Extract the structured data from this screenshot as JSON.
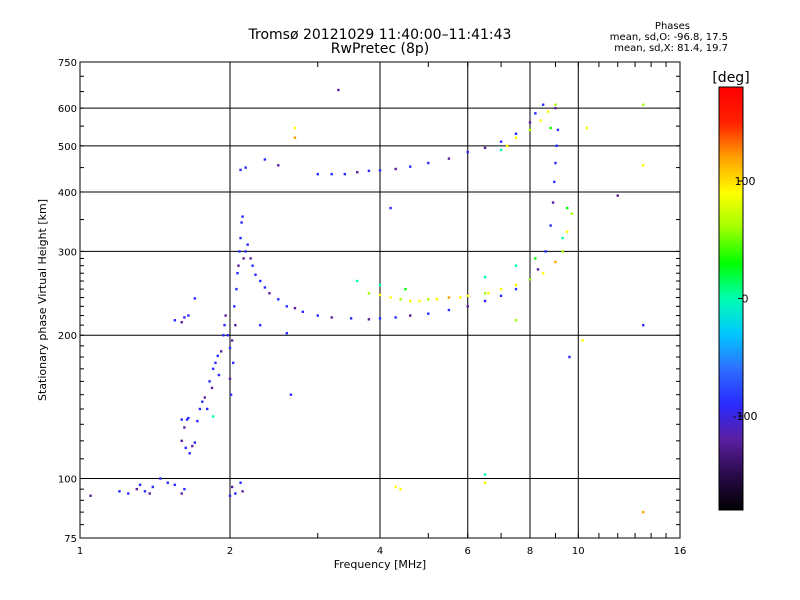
{
  "header": {
    "title_line1": "Tromsø 20121029 11:40:00–11:41:43",
    "title_line2": "RwPretec (8p)",
    "phase_title": "Phases",
    "phase_stats_o": "mean, sd,O: -96.8, 17.5",
    "phase_stats_x": "mean, sd,X: 81.4, 19.7"
  },
  "chart_data": {
    "type": "scatter",
    "title": "Tromsø 20121029 11:40:00–11:41:43",
    "subtitle": "RwPretec (8p)",
    "xlabel": "Frequency [MHz]",
    "ylabel": "Stationary phase Virtual Height [km]",
    "x_scale": "log",
    "y_scale": "log",
    "xlim": [
      1,
      16
    ],
    "ylim": [
      75,
      750
    ],
    "x_ticks": [
      1,
      2,
      4,
      6,
      8,
      10,
      16
    ],
    "x_tick_labels": [
      "1",
      "2",
      "4",
      "6",
      "8",
      "10",
      "16"
    ],
    "x_gridlines": [
      2,
      4,
      6,
      8,
      10
    ],
    "y_ticks": [
      75,
      100,
      200,
      300,
      400,
      500,
      600,
      750
    ],
    "y_tick_labels": [
      "75",
      "100",
      "200",
      "300",
      "400",
      "500",
      "600",
      "750"
    ],
    "y_gridlines": [
      100,
      200,
      300,
      400,
      500,
      600
    ],
    "grid": true,
    "colorbar": {
      "label": "[deg]",
      "range": [
        -180,
        180
      ],
      "ticks": [
        100,
        0,
        -100
      ],
      "tick_labels": [
        "100",
        "0",
        "-100"
      ],
      "colormap": [
        "#000000",
        "#2a0a4a",
        "#5a1fa0",
        "#2a2aff",
        "#2e6fff",
        "#00c8ff",
        "#00ffb0",
        "#00ff00",
        "#a0ff00",
        "#ffff00",
        "#ffa000",
        "#ff2000",
        "#ff0000"
      ]
    },
    "series": [
      {
        "color_range": [
          -115,
          -80
        ],
        "points": [
          [
            1.05,
            92
          ],
          [
            1.2,
            94
          ],
          [
            1.25,
            93
          ],
          [
            1.3,
            95
          ],
          [
            1.32,
            97
          ],
          [
            1.35,
            94
          ],
          [
            1.38,
            93
          ],
          [
            1.4,
            96
          ],
          [
            1.45,
            100
          ],
          [
            1.5,
            98
          ],
          [
            1.55,
            97
          ],
          [
            1.6,
            93
          ],
          [
            1.62,
            95
          ],
          [
            1.55,
            215
          ],
          [
            1.6,
            213
          ],
          [
            1.62,
            218
          ],
          [
            1.65,
            220
          ],
          [
            1.7,
            239
          ],
          [
            1.6,
            133
          ],
          [
            1.62,
            128
          ],
          [
            1.64,
            133
          ],
          [
            1.65,
            134
          ],
          [
            1.6,
            120
          ],
          [
            1.63,
            116
          ],
          [
            1.66,
            113
          ],
          [
            1.68,
            117
          ],
          [
            1.7,
            119
          ],
          [
            1.72,
            132
          ],
          [
            1.74,
            140
          ],
          [
            1.76,
            145
          ],
          [
            1.78,
            148
          ],
          [
            1.8,
            140
          ],
          [
            1.82,
            160
          ],
          [
            1.84,
            155
          ],
          [
            1.85,
            170
          ],
          [
            1.87,
            175
          ],
          [
            1.89,
            181
          ],
          [
            1.9,
            165
          ],
          [
            1.92,
            185
          ],
          [
            1.94,
            200
          ],
          [
            1.95,
            210
          ],
          [
            1.96,
            220
          ],
          [
            1.98,
            200
          ],
          [
            2.0,
            188
          ],
          [
            2.0,
            162
          ],
          [
            2.01,
            150
          ],
          [
            2.02,
            195
          ],
          [
            2.03,
            175
          ],
          [
            2.04,
            230
          ],
          [
            2.05,
            210
          ],
          [
            2.06,
            250
          ],
          [
            2.07,
            270
          ],
          [
            2.08,
            280
          ],
          [
            2.09,
            300
          ],
          [
            2.1,
            320
          ],
          [
            2.11,
            345
          ],
          [
            2.12,
            355
          ],
          [
            2.13,
            290
          ],
          [
            2.15,
            300
          ],
          [
            2.17,
            310
          ],
          [
            2.2,
            290
          ],
          [
            2.22,
            280
          ],
          [
            2.25,
            268
          ],
          [
            2.3,
            260
          ],
          [
            2.35,
            252
          ],
          [
            2.4,
            245
          ],
          [
            2.5,
            238
          ],
          [
            2.6,
            230
          ],
          [
            2.7,
            228
          ],
          [
            2.8,
            224
          ],
          [
            3.0,
            220
          ],
          [
            3.2,
            218
          ],
          [
            3.5,
            217
          ],
          [
            3.8,
            216
          ],
          [
            4.0,
            217
          ],
          [
            4.3,
            218
          ],
          [
            4.6,
            220
          ],
          [
            5.0,
            222
          ],
          [
            5.5,
            226
          ],
          [
            6.0,
            230
          ],
          [
            6.5,
            236
          ],
          [
            7.0,
            242
          ],
          [
            7.5,
            250
          ],
          [
            8.0,
            262
          ],
          [
            8.3,
            275
          ],
          [
            8.6,
            300
          ],
          [
            8.8,
            340
          ],
          [
            8.9,
            380
          ],
          [
            8.95,
            420
          ],
          [
            9.0,
            460
          ],
          [
            9.05,
            500
          ],
          [
            9.1,
            540
          ],
          [
            9.0,
            600
          ],
          [
            8.5,
            610
          ],
          [
            8.2,
            585
          ],
          [
            8.0,
            560
          ],
          [
            7.5,
            530
          ],
          [
            7.0,
            510
          ],
          [
            6.5,
            495
          ],
          [
            6.0,
            485
          ],
          [
            5.5,
            470
          ],
          [
            5.0,
            460
          ],
          [
            4.6,
            452
          ],
          [
            4.3,
            447
          ],
          [
            4.0,
            444
          ],
          [
            3.8,
            443
          ],
          [
            3.6,
            440
          ],
          [
            3.4,
            436
          ],
          [
            3.2,
            436
          ],
          [
            3.0,
            436
          ],
          [
            2.0,
            92
          ],
          [
            2.02,
            96
          ],
          [
            2.05,
            93
          ],
          [
            2.1,
            98
          ],
          [
            2.12,
            94
          ],
          [
            2.3,
            210
          ],
          [
            2.6,
            202
          ],
          [
            2.65,
            150
          ],
          [
            2.35,
            468
          ],
          [
            2.5,
            455
          ],
          [
            2.1,
            445
          ],
          [
            2.15,
            450
          ],
          [
            3.3,
            655
          ],
          [
            4.2,
            370
          ],
          [
            9.6,
            180
          ],
          [
            12.0,
            393
          ],
          [
            13.5,
            210
          ]
        ]
      },
      {
        "color_range": [
          60,
          110
        ],
        "points": [
          [
            3.8,
            245
          ],
          [
            4.0,
            243
          ],
          [
            4.2,
            240
          ],
          [
            4.4,
            238
          ],
          [
            4.6,
            236
          ],
          [
            4.8,
            236
          ],
          [
            5.0,
            238
          ],
          [
            5.2,
            238
          ],
          [
            5.5,
            240
          ],
          [
            5.8,
            240
          ],
          [
            6.0,
            242
          ],
          [
            6.5,
            245
          ],
          [
            7.0,
            250
          ],
          [
            7.5,
            255
          ],
          [
            8.0,
            262
          ],
          [
            8.5,
            270
          ],
          [
            9.0,
            285
          ],
          [
            9.3,
            300
          ],
          [
            9.5,
            330
          ],
          [
            9.7,
            360
          ],
          [
            7.2,
            500
          ],
          [
            7.5,
            520
          ],
          [
            8.0,
            540
          ],
          [
            8.4,
            565
          ],
          [
            8.7,
            590
          ],
          [
            9.0,
            610
          ],
          [
            2.7,
            545
          ],
          [
            2.7,
            520
          ],
          [
            4.4,
            95
          ],
          [
            6.5,
            98
          ],
          [
            7.5,
            215
          ],
          [
            10.4,
            545
          ],
          [
            10.2,
            195
          ],
          [
            13.5,
            610
          ],
          [
            13.5,
            455
          ],
          [
            13.5,
            85
          ],
          [
            6.6,
            245
          ],
          [
            4.3,
            96
          ]
        ]
      },
      {
        "color_range": [
          -10,
          30
        ],
        "points": [
          [
            3.6,
            260
          ],
          [
            4.0,
            255
          ],
          [
            4.5,
            250
          ],
          [
            6.5,
            265
          ],
          [
            7.5,
            280
          ],
          [
            8.2,
            290
          ],
          [
            9.3,
            320
          ],
          [
            7.0,
            490
          ],
          [
            8.8,
            545
          ],
          [
            1.85,
            135
          ],
          [
            9.5,
            370
          ],
          [
            6.5,
            102
          ]
        ]
      }
    ]
  }
}
